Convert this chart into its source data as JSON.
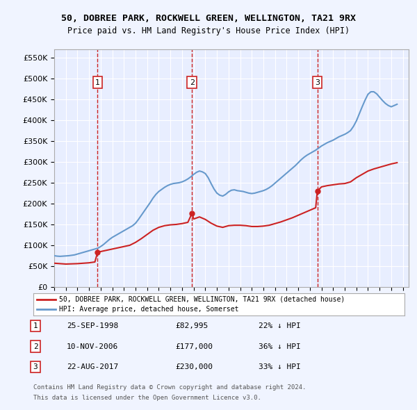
{
  "title1": "50, DOBREE PARK, ROCKWELL GREEN, WELLINGTON, TA21 9RX",
  "title2": "Price paid vs. HM Land Registry's House Price Index (HPI)",
  "ylabel_ticks": [
    "£0",
    "£50K",
    "£100K",
    "£150K",
    "£200K",
    "£250K",
    "£300K",
    "£350K",
    "£400K",
    "£450K",
    "£500K",
    "£550K"
  ],
  "ytick_values": [
    0,
    50000,
    100000,
    150000,
    200000,
    250000,
    300000,
    350000,
    400000,
    450000,
    500000,
    550000
  ],
  "ylim": [
    0,
    570000
  ],
  "xlim_start": 1995.0,
  "xlim_end": 2025.5,
  "sale_dates": [
    1998.73,
    2006.86,
    2017.64
  ],
  "sale_prices": [
    82995,
    177000,
    230000
  ],
  "sale_labels": [
    "1",
    "2",
    "3"
  ],
  "hpi_years": [
    1995.0,
    1995.25,
    1995.5,
    1995.75,
    1996.0,
    1996.25,
    1996.5,
    1996.75,
    1997.0,
    1997.25,
    1997.5,
    1997.75,
    1998.0,
    1998.25,
    1998.5,
    1998.75,
    1999.0,
    1999.25,
    1999.5,
    1999.75,
    2000.0,
    2000.25,
    2000.5,
    2000.75,
    2001.0,
    2001.25,
    2001.5,
    2001.75,
    2002.0,
    2002.25,
    2002.5,
    2002.75,
    2003.0,
    2003.25,
    2003.5,
    2003.75,
    2004.0,
    2004.25,
    2004.5,
    2004.75,
    2005.0,
    2005.25,
    2005.5,
    2005.75,
    2006.0,
    2006.25,
    2006.5,
    2006.75,
    2007.0,
    2007.25,
    2007.5,
    2007.75,
    2008.0,
    2008.25,
    2008.5,
    2008.75,
    2009.0,
    2009.25,
    2009.5,
    2009.75,
    2010.0,
    2010.25,
    2010.5,
    2010.75,
    2011.0,
    2011.25,
    2011.5,
    2011.75,
    2012.0,
    2012.25,
    2012.5,
    2012.75,
    2013.0,
    2013.25,
    2013.5,
    2013.75,
    2014.0,
    2014.25,
    2014.5,
    2014.75,
    2015.0,
    2015.25,
    2015.5,
    2015.75,
    2016.0,
    2016.25,
    2016.5,
    2016.75,
    2017.0,
    2017.25,
    2017.5,
    2017.75,
    2018.0,
    2018.25,
    2018.5,
    2018.75,
    2019.0,
    2019.25,
    2019.5,
    2019.75,
    2020.0,
    2020.25,
    2020.5,
    2020.75,
    2021.0,
    2021.25,
    2021.5,
    2021.75,
    2022.0,
    2022.25,
    2022.5,
    2022.75,
    2023.0,
    2023.25,
    2023.5,
    2023.75,
    2024.0,
    2024.25,
    2024.5
  ],
  "hpi_values": [
    75000,
    74000,
    73500,
    74000,
    74500,
    75000,
    76000,
    77000,
    79000,
    81000,
    83000,
    85000,
    87000,
    89000,
    91000,
    93000,
    97000,
    102000,
    108000,
    114000,
    119000,
    123000,
    127000,
    131000,
    135000,
    139000,
    143000,
    147000,
    153000,
    162000,
    172000,
    182000,
    192000,
    202000,
    213000,
    222000,
    229000,
    234000,
    239000,
    243000,
    246000,
    248000,
    249000,
    250000,
    252000,
    255000,
    259000,
    264000,
    270000,
    275000,
    278000,
    276000,
    272000,
    262000,
    248000,
    235000,
    225000,
    220000,
    218000,
    222000,
    228000,
    232000,
    233000,
    231000,
    230000,
    229000,
    227000,
    225000,
    224000,
    225000,
    227000,
    229000,
    231000,
    234000,
    238000,
    243000,
    249000,
    255000,
    261000,
    267000,
    273000,
    279000,
    285000,
    291000,
    298000,
    305000,
    311000,
    316000,
    320000,
    324000,
    328000,
    333000,
    338000,
    342000,
    346000,
    349000,
    352000,
    356000,
    360000,
    363000,
    366000,
    370000,
    375000,
    385000,
    398000,
    415000,
    432000,
    448000,
    462000,
    468000,
    468000,
    463000,
    455000,
    447000,
    440000,
    435000,
    432000,
    435000,
    438000
  ],
  "red_line_years": [
    1995.0,
    1995.5,
    1996.0,
    1996.5,
    1997.0,
    1997.5,
    1998.0,
    1998.5,
    1998.73,
    1999.0,
    1999.5,
    2000.0,
    2000.5,
    2001.0,
    2001.5,
    2002.0,
    2002.5,
    2003.0,
    2003.5,
    2004.0,
    2004.5,
    2005.0,
    2005.5,
    2006.0,
    2006.5,
    2006.86,
    2007.0,
    2007.5,
    2008.0,
    2008.5,
    2009.0,
    2009.5,
    2010.0,
    2010.5,
    2011.0,
    2011.5,
    2012.0,
    2012.5,
    2013.0,
    2013.5,
    2014.0,
    2014.5,
    2015.0,
    2015.5,
    2016.0,
    2016.5,
    2017.0,
    2017.5,
    2017.64,
    2018.0,
    2018.5,
    2019.0,
    2019.5,
    2020.0,
    2020.5,
    2021.0,
    2021.5,
    2022.0,
    2022.5,
    2023.0,
    2023.5,
    2024.0,
    2024.5
  ],
  "red_line_values": [
    57000,
    56000,
    55000,
    55500,
    56000,
    57000,
    58000,
    60000,
    82995,
    85000,
    88000,
    91000,
    94000,
    97000,
    100000,
    107000,
    116000,
    126000,
    136000,
    143000,
    147000,
    149000,
    150000,
    152000,
    155000,
    177000,
    163000,
    168000,
    162000,
    153000,
    146000,
    143000,
    147000,
    148000,
    148000,
    147000,
    145000,
    145000,
    146000,
    148000,
    152000,
    156000,
    161000,
    166000,
    172000,
    178000,
    184000,
    190000,
    230000,
    240000,
    243000,
    245000,
    247000,
    248000,
    252000,
    262000,
    270000,
    278000,
    283000,
    287000,
    291000,
    295000,
    298000
  ],
  "background_color": "#f0f4ff",
  "plot_bg_color": "#e8eeff",
  "grid_color": "#ffffff",
  "hpi_line_color": "#6699cc",
  "red_line_color": "#cc2222",
  "dashed_line_color": "#cc2222",
  "legend_label_red": "50, DOBREE PARK, ROCKWELL GREEN, WELLINGTON, TA21 9RX (detached house)",
  "legend_label_blue": "HPI: Average price, detached house, Somerset",
  "footnote1": "Contains HM Land Registry data © Crown copyright and database right 2024.",
  "footnote2": "This data is licensed under the Open Government Licence v3.0.",
  "table_rows": [
    {
      "num": "1",
      "date": "25-SEP-1998",
      "price": "£82,995",
      "hpi": "22% ↓ HPI"
    },
    {
      "num": "2",
      "date": "10-NOV-2006",
      "price": "£177,000",
      "hpi": "36% ↓ HPI"
    },
    {
      "num": "3",
      "date": "22-AUG-2017",
      "price": "£230,000",
      "hpi": "33% ↓ HPI"
    }
  ]
}
